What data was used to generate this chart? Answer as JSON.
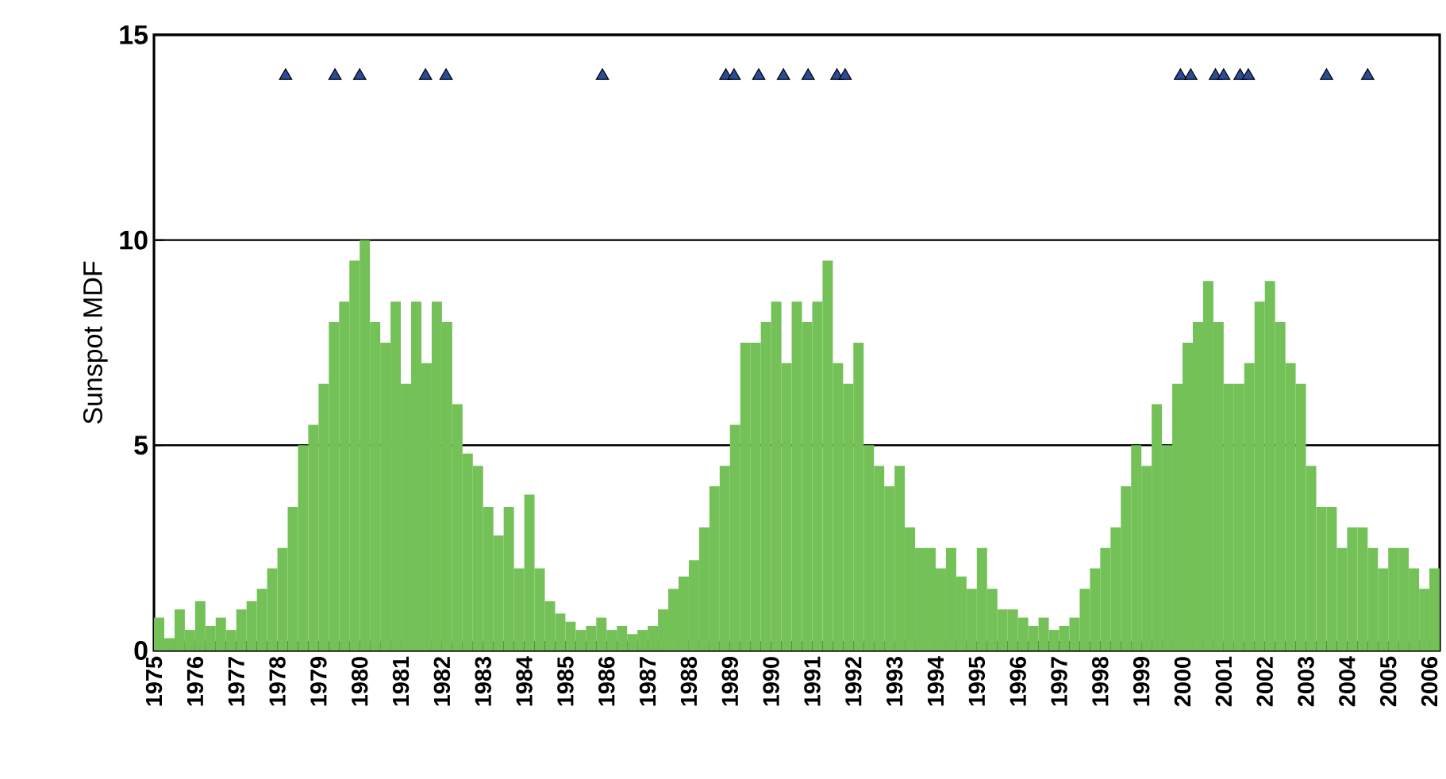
{
  "chart_data": {
    "type": "bar",
    "ylabel": "Sunspot MDF",
    "x": [
      1975.125,
      1975.375,
      1975.625,
      1975.875,
      1976.125,
      1976.375,
      1976.625,
      1976.875,
      1977.125,
      1977.375,
      1977.625,
      1977.875,
      1978.125,
      1978.375,
      1978.625,
      1978.875,
      1979.125,
      1979.375,
      1979.625,
      1979.875,
      1980.125,
      1980.375,
      1980.625,
      1980.875,
      1981.125,
      1981.375,
      1981.625,
      1981.875,
      1982.125,
      1982.375,
      1982.625,
      1982.875,
      1983.125,
      1983.375,
      1983.625,
      1983.875,
      1984.125,
      1984.375,
      1984.625,
      1984.875,
      1985.125,
      1985.375,
      1985.625,
      1985.875,
      1986.125,
      1986.375,
      1986.625,
      1986.875,
      1987.125,
      1987.375,
      1987.625,
      1987.875,
      1988.125,
      1988.375,
      1988.625,
      1988.875,
      1989.125,
      1989.375,
      1989.625,
      1989.875,
      1990.125,
      1990.375,
      1990.625,
      1990.875,
      1991.125,
      1991.375,
      1991.625,
      1991.875,
      1992.125,
      1992.375,
      1992.625,
      1992.875,
      1993.125,
      1993.375,
      1993.625,
      1993.875,
      1994.125,
      1994.375,
      1994.625,
      1994.875,
      1995.125,
      1995.375,
      1995.625,
      1995.875,
      1996.125,
      1996.375,
      1996.625,
      1996.875,
      1997.125,
      1997.375,
      1997.625,
      1997.875,
      1998.125,
      1998.375,
      1998.625,
      1998.875,
      1999.125,
      1999.375,
      1999.625,
      1999.875,
      2000.125,
      2000.375,
      2000.625,
      2000.875,
      2001.125,
      2001.375,
      2001.625,
      2001.875,
      2002.125,
      2002.375,
      2002.625,
      2002.875,
      2003.125,
      2003.375,
      2003.625,
      2003.875,
      2004.125,
      2004.375,
      2004.625,
      2004.875,
      2005.125,
      2005.375,
      2005.625,
      2005.875,
      2006.125
    ],
    "series": [
      {
        "color": "#74c158",
        "values": [
          0.8,
          0.3,
          1.0,
          0.5,
          1.2,
          0.6,
          0.8,
          0.5,
          1.0,
          1.2,
          1.5,
          2.0,
          2.5,
          3.5,
          5.0,
          5.5,
          6.5,
          8.0,
          8.5,
          9.5,
          10.0,
          8.0,
          7.5,
          8.5,
          6.5,
          8.5,
          7.0,
          8.5,
          8.0,
          6.0,
          4.8,
          4.5,
          3.5,
          2.8,
          3.5,
          2.0,
          3.8,
          2.0,
          1.2,
          0.9,
          0.7,
          0.5,
          0.6,
          0.8,
          0.5,
          0.6,
          0.4,
          0.5,
          0.6,
          1.0,
          1.5,
          1.8,
          2.2,
          3.0,
          4.0,
          4.5,
          5.5,
          7.5,
          7.5,
          8.0,
          8.5,
          7.0,
          8.5,
          8.0,
          8.5,
          9.5,
          7.0,
          6.5,
          7.5,
          5.0,
          4.5,
          4.0,
          4.5,
          3.0,
          2.5,
          2.5,
          2.0,
          2.5,
          1.8,
          1.5,
          2.5,
          1.5,
          1.0,
          1.0,
          0.8,
          0.6,
          0.8,
          0.5,
          0.6,
          0.8,
          1.5,
          2.0,
          2.5,
          3.0,
          4.0,
          5.0,
          4.5,
          6.0,
          5.0,
          6.5,
          7.5,
          8.0,
          9.0,
          8.0,
          6.5,
          6.5,
          7.0,
          8.5,
          9.0,
          8.0,
          7.0,
          6.5,
          4.5,
          3.5,
          3.5,
          2.5,
          3.0,
          3.0,
          2.5,
          2.0,
          2.5,
          2.5,
          2.0,
          1.5,
          2.0
        ]
      },
      {
        "type": "scatter",
        "color": "#2a4a9a",
        "marker": "triangle",
        "x": [
          1978.2,
          1979.4,
          1980.0,
          1981.6,
          1982.1,
          1985.9,
          1988.9,
          1989.1,
          1989.7,
          1990.3,
          1990.9,
          1991.6,
          1991.8,
          1999.95,
          2000.2,
          2000.8,
          2001.0,
          2001.4,
          2001.6,
          2003.5,
          2004.5
        ],
        "values": [
          14,
          14,
          14,
          14,
          14,
          14,
          14,
          14,
          14,
          14,
          14,
          14,
          14,
          14,
          14,
          14,
          14,
          14,
          14,
          14,
          14
        ]
      }
    ],
    "xlim": [
      1975,
      2006.25
    ],
    "xticks": [
      1975,
      1976,
      1977,
      1978,
      1979,
      1980,
      1981,
      1982,
      1983,
      1984,
      1985,
      1986,
      1987,
      1988,
      1989,
      1990,
      1991,
      1992,
      1993,
      1994,
      1995,
      1996,
      1997,
      1998,
      1999,
      2000,
      2001,
      2002,
      2003,
      2004,
      2005,
      2006
    ],
    "ylim": [
      0,
      15
    ],
    "yticks": [
      0,
      5,
      10,
      15
    ],
    "grid": "y"
  }
}
